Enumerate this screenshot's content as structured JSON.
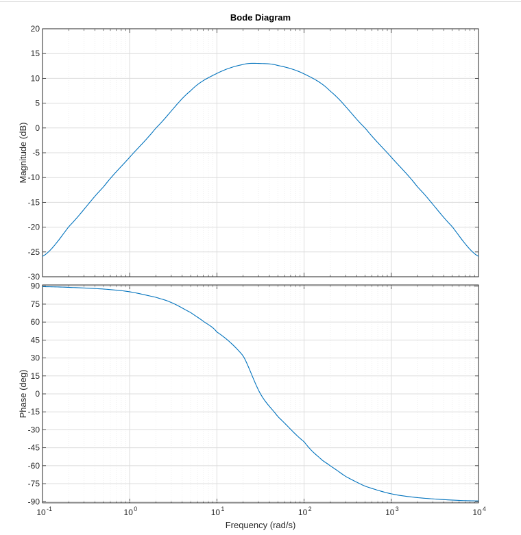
{
  "chart_data": [
    {
      "type": "line",
      "title": "Bode Diagram",
      "xlabel": "Frequency  (rad/s)",
      "ylabel": "Magnitude (dB)",
      "xscale": "log",
      "xlim": [
        0.1,
        10000
      ],
      "ylim": [
        -30,
        20
      ],
      "yticks": [
        "20",
        "15",
        "10",
        "5",
        "0",
        "-5",
        "-10",
        "-15",
        "-20",
        "-25",
        "-30"
      ],
      "grid": true,
      "series": [
        {
          "color": "#0072bd",
          "x": [
            0.1,
            0.2,
            0.5,
            1,
            2,
            5,
            10,
            20,
            31.6,
            50,
            100,
            200,
            500,
            1000,
            2000,
            5000,
            10000
          ],
          "y": [
            -25.9,
            -19.9,
            -11.9,
            -5.9,
            0.0,
            7.5,
            11.0,
            12.8,
            13.0,
            12.6,
            10.9,
            7.4,
            0.0,
            -5.9,
            -11.9,
            -19.9,
            -25.9
          ]
        }
      ]
    },
    {
      "type": "line",
      "xlabel": "Frequency  (rad/s)",
      "ylabel": "Phase (deg)",
      "xscale": "log",
      "xlim": [
        0.1,
        10000
      ],
      "ylim": [
        -91,
        91
      ],
      "yticks": [
        "90",
        "75",
        "60",
        "45",
        "30",
        "15",
        "0",
        "-15",
        "-30",
        "-45",
        "-60",
        "-75",
        "-90"
      ],
      "xticks": [
        {
          "base": "10",
          "exp": "-1"
        },
        {
          "base": "10",
          "exp": "0"
        },
        {
          "base": "10",
          "exp": "1"
        },
        {
          "base": "10",
          "exp": "2"
        },
        {
          "base": "10",
          "exp": "3"
        },
        {
          "base": "10",
          "exp": "4"
        }
      ],
      "grid": true,
      "series": [
        {
          "color": "#0072bd",
          "x": [
            0.1,
            0.2,
            0.5,
            1,
            2,
            3,
            5,
            7,
            10,
            20,
            31.6,
            50,
            100,
            150,
            200,
            300,
            500,
            1000,
            2000,
            5000,
            10000
          ],
          "y": [
            89.6,
            89.0,
            87.6,
            85.3,
            80.7,
            76.3,
            68.0,
            60.6,
            51.7,
            31.8,
            0.0,
            -19.0,
            -40.0,
            -53.2,
            -60.2,
            -69.0,
            -77.1,
            -83.5,
            -86.7,
            -88.7,
            -89.4
          ]
        }
      ]
    }
  ]
}
